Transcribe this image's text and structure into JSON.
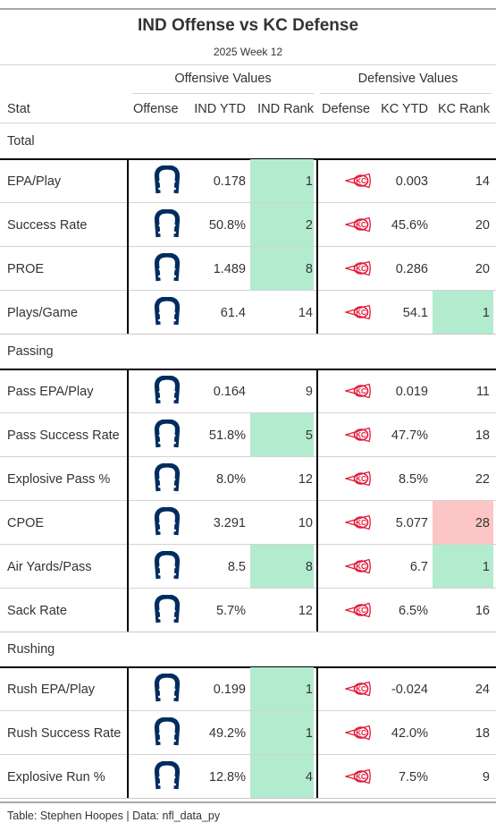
{
  "title": "IND Offense vs KC Defense",
  "subtitle": "2025 Week 12",
  "spanners": {
    "offense": "Offensive Values",
    "defense": "Defensive Values"
  },
  "columns": [
    "Stat",
    "Offense",
    "IND YTD",
    "IND Rank",
    "Defense",
    "KC YTD",
    "KC Rank"
  ],
  "colors": {
    "good": "#b3ebcf",
    "bad": "#fcc6c6",
    "colts_blue": "#002c5f",
    "chiefs_red": "#e31837"
  },
  "icons": {
    "offense": "colts-horseshoe-icon",
    "defense": "chiefs-arrowhead-icon"
  },
  "groups": [
    {
      "label": "Total",
      "rows": [
        {
          "stat": "EPA/Play",
          "ind_ytd": "0.178",
          "ind_rank": "1",
          "kc_ytd": "0.003",
          "kc_rank": "14",
          "ind_hl": "good",
          "kc_hl": ""
        },
        {
          "stat": "Success Rate",
          "ind_ytd": "50.8%",
          "ind_rank": "2",
          "kc_ytd": "45.6%",
          "kc_rank": "20",
          "ind_hl": "good",
          "kc_hl": ""
        },
        {
          "stat": "PROE",
          "ind_ytd": "1.489",
          "ind_rank": "8",
          "kc_ytd": "0.286",
          "kc_rank": "20",
          "ind_hl": "good",
          "kc_hl": ""
        },
        {
          "stat": "Plays/Game",
          "ind_ytd": "61.4",
          "ind_rank": "14",
          "kc_ytd": "54.1",
          "kc_rank": "1",
          "ind_hl": "",
          "kc_hl": "good"
        }
      ]
    },
    {
      "label": "Passing",
      "rows": [
        {
          "stat": "Pass EPA/Play",
          "ind_ytd": "0.164",
          "ind_rank": "9",
          "kc_ytd": "0.019",
          "kc_rank": "11",
          "ind_hl": "",
          "kc_hl": ""
        },
        {
          "stat": "Pass Success Rate",
          "ind_ytd": "51.8%",
          "ind_rank": "5",
          "kc_ytd": "47.7%",
          "kc_rank": "18",
          "ind_hl": "good",
          "kc_hl": ""
        },
        {
          "stat": "Explosive Pass %",
          "ind_ytd": "8.0%",
          "ind_rank": "12",
          "kc_ytd": "8.5%",
          "kc_rank": "22",
          "ind_hl": "",
          "kc_hl": ""
        },
        {
          "stat": "CPOE",
          "ind_ytd": "3.291",
          "ind_rank": "10",
          "kc_ytd": "5.077",
          "kc_rank": "28",
          "ind_hl": "",
          "kc_hl": "bad"
        },
        {
          "stat": "Air Yards/Pass",
          "ind_ytd": "8.5",
          "ind_rank": "8",
          "kc_ytd": "6.7",
          "kc_rank": "1",
          "ind_hl": "good",
          "kc_hl": "good"
        },
        {
          "stat": "Sack Rate",
          "ind_ytd": "5.7%",
          "ind_rank": "12",
          "kc_ytd": "6.5%",
          "kc_rank": "16",
          "ind_hl": "",
          "kc_hl": ""
        }
      ]
    },
    {
      "label": "Rushing",
      "rows": [
        {
          "stat": "Rush EPA/Play",
          "ind_ytd": "0.199",
          "ind_rank": "1",
          "kc_ytd": "-0.024",
          "kc_rank": "24",
          "ind_hl": "good",
          "kc_hl": ""
        },
        {
          "stat": "Rush Success Rate",
          "ind_ytd": "49.2%",
          "ind_rank": "1",
          "kc_ytd": "42.0%",
          "kc_rank": "18",
          "ind_hl": "good",
          "kc_hl": ""
        },
        {
          "stat": "Explosive Run %",
          "ind_ytd": "12.8%",
          "ind_rank": "4",
          "kc_ytd": "7.5%",
          "kc_rank": "9",
          "ind_hl": "good",
          "kc_hl": ""
        }
      ]
    }
  ],
  "footer": "Table: Stephen Hoopes | Data: nfl_data_py"
}
